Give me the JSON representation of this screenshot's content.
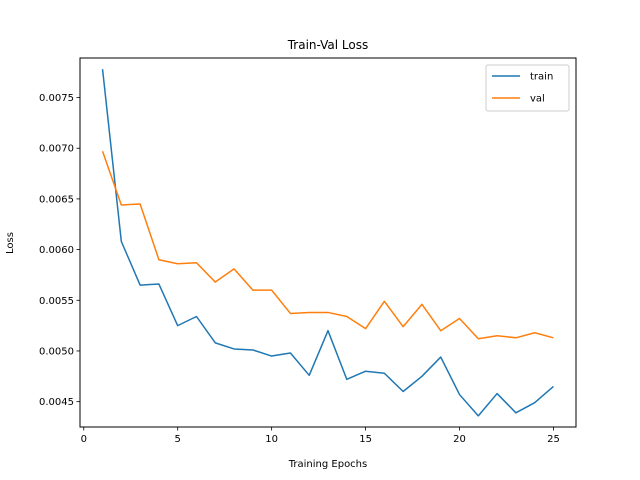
{
  "chart_data": {
    "type": "line",
    "title": "Train-Val Loss",
    "xlabel": "Training Epochs",
    "ylabel": "Loss",
    "xlim": [
      -0.2,
      26.2
    ],
    "ylim": [
      0.00425,
      0.00789
    ],
    "xticks": [
      0,
      5,
      10,
      15,
      20,
      25
    ],
    "yticks": [
      0.0045,
      0.005,
      0.0055,
      0.006,
      0.0065,
      0.007,
      0.0075
    ],
    "ytick_labels": [
      "0.0045",
      "0.0050",
      "0.0055",
      "0.0060",
      "0.0065",
      "0.0070",
      "0.0075"
    ],
    "grid": false,
    "legend_position": "top-right",
    "x": [
      1,
      2,
      3,
      4,
      5,
      6,
      7,
      8,
      9,
      10,
      11,
      12,
      13,
      14,
      15,
      16,
      17,
      18,
      19,
      20,
      21,
      22,
      23,
      24,
      25
    ],
    "series": [
      {
        "name": "train",
        "color": "#1f77b4",
        "values": [
          0.00778,
          0.00608,
          0.00565,
          0.00566,
          0.00525,
          0.00534,
          0.00508,
          0.00502,
          0.00501,
          0.00495,
          0.00498,
          0.00476,
          0.0052,
          0.00472,
          0.0048,
          0.00478,
          0.0046,
          0.00475,
          0.00494,
          0.00457,
          0.00436,
          0.00458,
          0.00439,
          0.00449,
          0.00465
        ]
      },
      {
        "name": "val",
        "color": "#ff7f0e",
        "values": [
          0.00697,
          0.00644,
          0.00645,
          0.0059,
          0.00586,
          0.00587,
          0.00568,
          0.00581,
          0.0056,
          0.0056,
          0.00537,
          0.00538,
          0.00538,
          0.00534,
          0.00522,
          0.00549,
          0.00524,
          0.00546,
          0.0052,
          0.00532,
          0.00512,
          0.00515,
          0.00513,
          0.00518,
          0.00513
        ]
      }
    ]
  }
}
